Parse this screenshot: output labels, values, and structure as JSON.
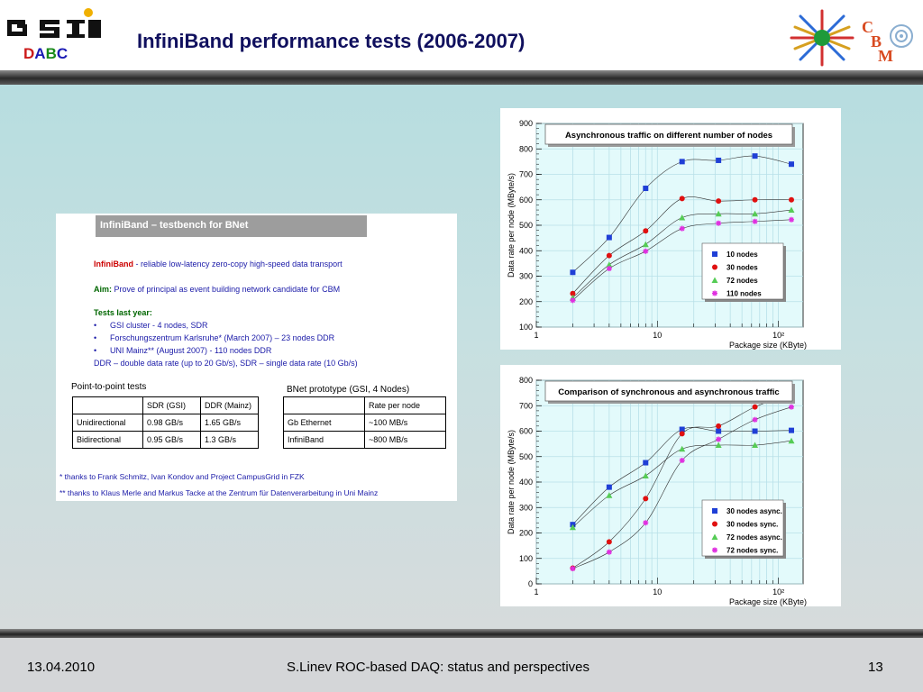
{
  "header": {
    "title": "InfiniBand performance tests (2006-2007)",
    "logo_left_text": "GSI",
    "dabc_letters": [
      {
        "t": "D",
        "color": "#cc1a1a"
      },
      {
        "t": "A",
        "color": "#1a1ab4"
      },
      {
        "t": "B",
        "color": "#1a8a1a"
      },
      {
        "t": "C",
        "color": "#1a1ab4"
      }
    ],
    "logo_right_letters": [
      "C",
      "B",
      "M"
    ]
  },
  "panel": {
    "heading": "InfiniBand – testbench for BNet",
    "infiniband_word": "InfiniBand",
    "infiniband_desc": " - reliable low-latency zero-copy high-speed data transport",
    "aim_word": "Aim:",
    "aim_desc": " Prove of principal as event building network candidate for CBM",
    "tests_heading": "Tests last year:",
    "tests": [
      "GSI cluster - 4 nodes, SDR",
      "Forschungszentrum Karlsruhe* (March 2007) – 23 nodes DDR",
      "UNI Mainz** (August 2007) - 110 nodes DDR"
    ],
    "ddr_note": "DDR – double data rate (up to 20 Gb/s), SDR – single data rate (10 Gb/s)",
    "p2p_title": "Point-to-point tests",
    "p2p_header": [
      "",
      "SDR (GSI)",
      "DDR (Mainz)"
    ],
    "p2p_rows": [
      [
        "Unidirectional",
        "0.98 GB/s",
        "1.65 GB/s"
      ],
      [
        "Bidirectional",
        "0.95 GB/s",
        "1.3 GB/s"
      ]
    ],
    "bnet_title": "BNet prototype (GSI, 4 Nodes)",
    "bnet_header": [
      "",
      "Rate per node"
    ],
    "bnet_rows": [
      [
        "Gb Ethernet",
        "~100 MB/s"
      ],
      [
        "InfiniBand",
        "~800 MB/s"
      ]
    ],
    "note1": "* thanks to Frank Schmitz, Ivan Kondov and Project CampusGrid in FZK",
    "note2": "** thanks to Klaus Merle and Markus Tacke at the Zentrum für Datenverarbeitung in Uni Mainz"
  },
  "chart_data": [
    {
      "type": "line",
      "title": "Asynchronous traffic on different number of nodes",
      "xlabel": "Package size (KByte)",
      "ylabel": "Data rate per node (MByte/s)",
      "xscale": "log",
      "xlim": [
        1,
        160
      ],
      "ylim": [
        100,
        900
      ],
      "yticks": [
        100,
        200,
        300,
        400,
        500,
        600,
        700,
        800,
        900
      ],
      "xtick_labels": [
        "1",
        "10",
        "10²"
      ],
      "grid": true,
      "legend": "lower-right",
      "x": [
        2,
        4,
        8,
        16,
        32,
        64,
        128
      ],
      "series": [
        {
          "name": "10 nodes",
          "marker": "square",
          "color": "#1f3fd6",
          "values": [
            315,
            452,
            645,
            750,
            755,
            772,
            740
          ]
        },
        {
          "name": "30 nodes",
          "marker": "circle",
          "color": "#e01010",
          "values": [
            232,
            381,
            478,
            605,
            595,
            600,
            600
          ]
        },
        {
          "name": "72 nodes",
          "marker": "triangle",
          "color": "#55cc55",
          "values": [
            215,
            345,
            425,
            530,
            545,
            545,
            560
          ]
        },
        {
          "name": "110 nodes",
          "marker": "star",
          "color": "#e030e0",
          "values": [
            205,
            330,
            398,
            487,
            508,
            515,
            522
          ]
        }
      ]
    },
    {
      "type": "line",
      "title": "Comparison of synchronous and asynchronous traffic",
      "xlabel": "Package size (KByte)",
      "ylabel": "Data rate per node (MByte/s)",
      "xscale": "log",
      "xlim": [
        1,
        160
      ],
      "ylim": [
        0,
        800
      ],
      "yticks": [
        0,
        100,
        200,
        300,
        400,
        500,
        600,
        700,
        800
      ],
      "xtick_labels": [
        "1",
        "10",
        "10²"
      ],
      "grid": true,
      "legend": "lower-right",
      "x": [
        2,
        4,
        8,
        16,
        32,
        64,
        128
      ],
      "series": [
        {
          "name": "30 nodes async.",
          "marker": "square",
          "color": "#1f3fd6",
          "values": [
            233,
            380,
            476,
            607,
            600,
            600,
            603
          ]
        },
        {
          "name": "30 nodes sync.",
          "marker": "circle",
          "color": "#e01010",
          "values": [
            62,
            165,
            335,
            590,
            620,
            695,
            748
          ]
        },
        {
          "name": "72 nodes async.",
          "marker": "triangle",
          "color": "#55cc55",
          "values": [
            222,
            348,
            425,
            530,
            545,
            545,
            562
          ]
        },
        {
          "name": "72 nodes sync.",
          "marker": "star",
          "color": "#e030e0",
          "values": [
            60,
            125,
            240,
            485,
            568,
            645,
            695
          ]
        }
      ]
    }
  ],
  "footer": {
    "date": "13.04.2010",
    "center": "S.Linev  ROC-based DAQ: status and perspectives",
    "page": "13"
  }
}
